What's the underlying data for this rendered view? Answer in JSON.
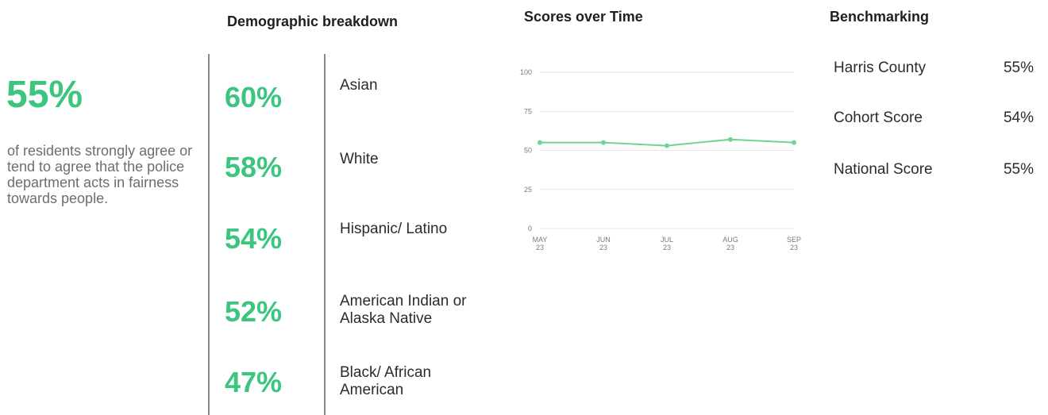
{
  "summary": {
    "headline_pct": "55%",
    "description": "of residents strongly agree or tend to agree that the police department acts in fairness towards people."
  },
  "demographic": {
    "title": "Demographic breakdown",
    "rows": [
      {
        "pct": "60%",
        "label": "Asian"
      },
      {
        "pct": "58%",
        "label": "White"
      },
      {
        "pct": "54%",
        "label": "Hispanic/ Latino"
      },
      {
        "pct": "52%",
        "label": "American Indian or\n Alaska Native"
      },
      {
        "pct": "47%",
        "label": "Black/ African\nAmerican"
      }
    ]
  },
  "scores": {
    "title": "Scores over Time"
  },
  "benchmarking": {
    "title": "Benchmarking",
    "rows": [
      {
        "name": "Harris County",
        "value": "55%"
      },
      {
        "name": "Cohort Score",
        "value": "54%"
      },
      {
        "name": "National Score",
        "value": "55%"
      }
    ]
  },
  "colors": {
    "accent": "#3cc57f",
    "line": "#6fd394",
    "divider": "#8a8a8a",
    "grid": "#e6e6e6"
  },
  "chart_data": {
    "type": "line",
    "title": "",
    "xlabel": "",
    "ylabel": "",
    "categories": [
      "MAY\n23",
      "JUN\n23",
      "JUL\n23",
      "AUG\n23",
      "SEP\n23"
    ],
    "series": [
      {
        "values": [
          55,
          55,
          53,
          57,
          55
        ]
      }
    ],
    "ylim": [
      0,
      100
    ],
    "yticks": [
      0,
      25,
      50,
      75,
      100
    ],
    "grid": true,
    "legend": "none"
  }
}
